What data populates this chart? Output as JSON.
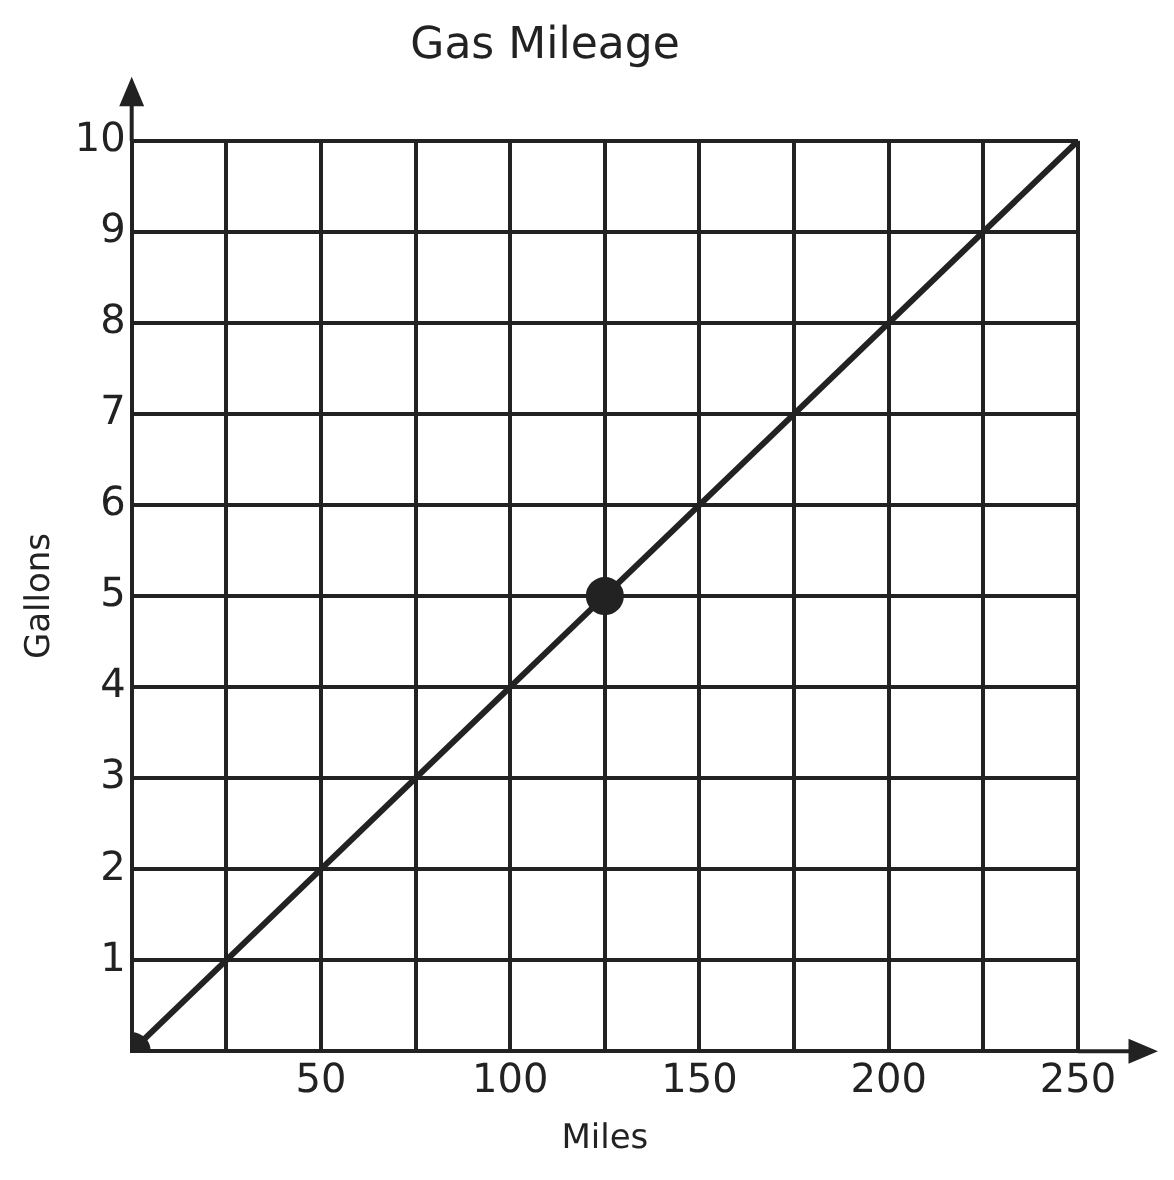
{
  "chart_data": {
    "type": "line",
    "title": "Gas Mileage",
    "xlabel": "Miles",
    "ylabel": "Gallons",
    "xlim": [
      0,
      250
    ],
    "ylim": [
      0,
      10
    ],
    "xticks": [
      {
        "value": 0,
        "label": null
      },
      {
        "value": 25,
        "label": null
      },
      50,
      {
        "value": 75,
        "label": null
      },
      100,
      {
        "value": 125,
        "label": null
      },
      150,
      {
        "value": 175,
        "label": null
      },
      200,
      {
        "value": 225,
        "label": null
      },
      250
    ],
    "yticks": [
      {
        "value": 0,
        "label": null
      },
      1,
      2,
      3,
      4,
      5,
      6,
      7,
      8,
      9,
      10
    ],
    "grid": true,
    "legend": false,
    "series": [
      {
        "color": "#222222",
        "x": [
          0,
          250
        ],
        "values": [
          0,
          10
        ],
        "marker": "none"
      },
      {
        "type": "scatter",
        "color": "#222222",
        "x": [
          0,
          125
        ],
        "values": [
          0,
          5
        ],
        "marker": "circle"
      }
    ]
  }
}
